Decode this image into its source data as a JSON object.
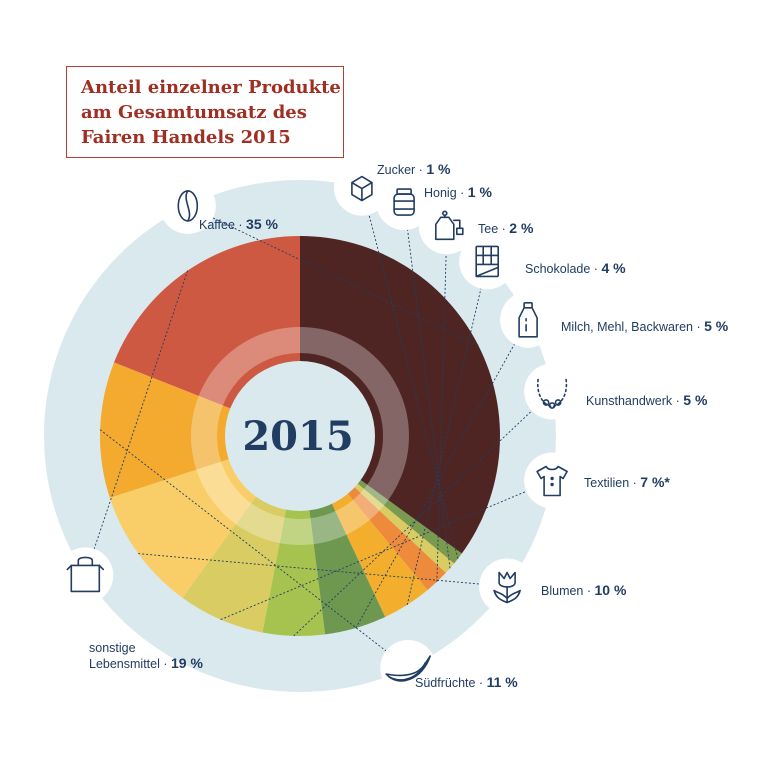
{
  "chart_data": {
    "type": "pie",
    "title": [
      "Anteil einzelner Produkte",
      "am Gesamtumsatz des",
      "Fairen Handels 2015"
    ],
    "center_label": "2015",
    "unit": "%",
    "slices": [
      {
        "name": "Kaffee",
        "value": 35,
        "label": "35 %",
        "color": "#4e2523",
        "icon": "coffee-bean-icon"
      },
      {
        "name": "Zucker",
        "value": 1,
        "label": "1 %",
        "color": "#7a9a4f",
        "icon": "sugar-cube-icon"
      },
      {
        "name": "Honig",
        "value": 1,
        "label": "1 %",
        "color": "#d9cc62",
        "icon": "honey-jar-icon"
      },
      {
        "name": "Tee",
        "value": 2,
        "label": "2 %",
        "color": "#ee8a3b",
        "icon": "tea-bag-icon"
      },
      {
        "name": "Schokolade",
        "value": 4,
        "label": "4 %",
        "color": "#f3ae2d",
        "icon": "chocolate-bar-icon"
      },
      {
        "name": "Milch, Mehl, Backwaren",
        "value": 5,
        "label": "5 %",
        "color": "#6e9850",
        "icon": "milk-bottle-icon"
      },
      {
        "name": "Kunsthandwerk",
        "value": 5,
        "label": "5 %",
        "color": "#a6c24f",
        "icon": "necklace-icon"
      },
      {
        "name": "Textilien",
        "value": 7,
        "label": "7 %*",
        "color": "#d9cc62",
        "icon": "tshirt-icon"
      },
      {
        "name": "Blumen",
        "value": 10,
        "label": "10 %",
        "color": "#f9ce68",
        "icon": "tulip-icon"
      },
      {
        "name": "Südfrüchte",
        "value": 11,
        "label": "11 %",
        "color": "#f3aa2f",
        "icon": "banana-icon"
      },
      {
        "name": "sonstige Lebensmittel",
        "value": 19,
        "label": "19 %",
        "color": "#cd5942",
        "icon": "shopping-bag-icon"
      }
    ]
  }
}
